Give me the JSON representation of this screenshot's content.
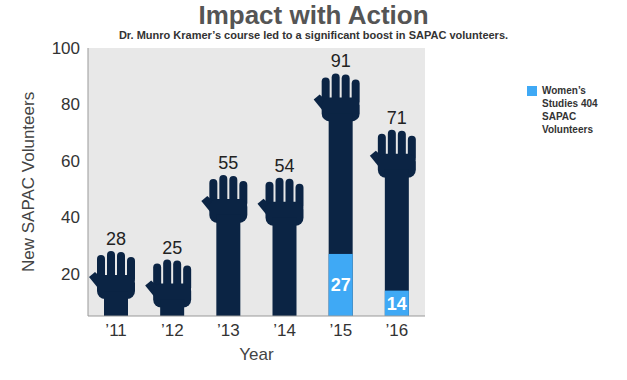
{
  "chart_data": {
    "type": "bar",
    "title": "Impact with Action",
    "subtitle": "Dr. Munro Kramer’s course led to a significant boost in SAPAC volunteers.",
    "x_label": "Year",
    "y_label": "New SAPAC Volunteers",
    "categories": [
      "’11",
      "’12",
      "’13",
      "’14",
      "’15",
      "’16"
    ],
    "series": [
      {
        "color": "#0b2444",
        "values": [
          28,
          25,
          55,
          54,
          91,
          71
        ]
      },
      {
        "name": "Women’s Studies 404 SAPAC Volunteers",
        "color": "#3fa9f5",
        "values": [
          null,
          null,
          null,
          null,
          27,
          14
        ]
      }
    ],
    "ylim": [
      5,
      100
    ],
    "yticks": [
      20,
      40,
      60,
      80,
      100
    ],
    "grid": false,
    "data_labels": true,
    "stacked": false
  }
}
